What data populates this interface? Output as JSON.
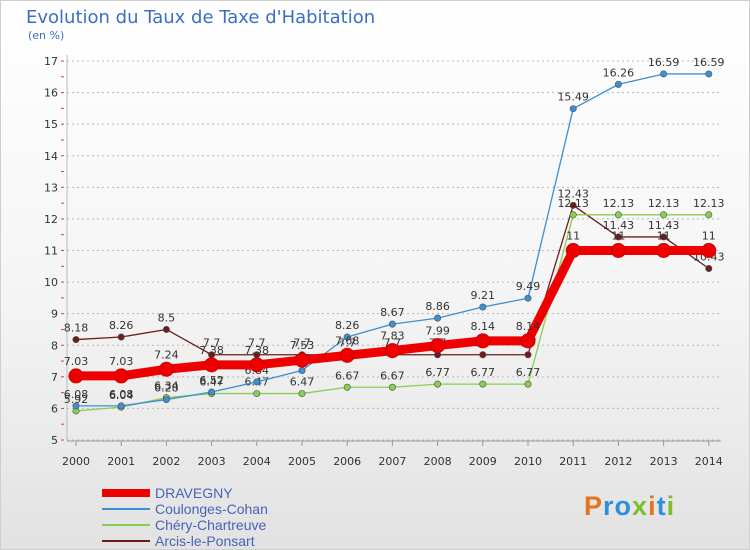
{
  "header": {
    "title": "Evolution du Taux de Taxe d'Habitation",
    "unit": "(en %)"
  },
  "logo": {
    "text": "Proxiti",
    "colors": [
      "#e8731c",
      "#2f8fd8",
      "#2f8fd8",
      "#7bbf2a",
      "#e8731c",
      "#2f8fd8",
      "#7bbf2a"
    ]
  },
  "chart_data": {
    "type": "line",
    "title": "Evolution du Taux de Taxe d'Habitation",
    "ylabel": "(en %)",
    "x": [
      2000,
      2001,
      2002,
      2003,
      2004,
      2005,
      2006,
      2007,
      2008,
      2009,
      2010,
      2011,
      2012,
      2013,
      2014
    ],
    "ylim": [
      5,
      17
    ],
    "yticks": [
      5,
      6,
      7,
      8,
      9,
      10,
      11,
      12,
      13,
      14,
      15,
      16,
      17
    ],
    "grid": true,
    "legend_position": "bottom-left",
    "series": [
      {
        "name": "DRAVEGNY",
        "color": "#ee0000",
        "values": [
          7.03,
          7.03,
          7.24,
          7.38,
          7.38,
          7.53,
          7.68,
          7.83,
          7.99,
          8.14,
          8.14,
          11,
          11,
          11,
          11
        ]
      },
      {
        "name": "Coulonges-Cohan",
        "color": "#3d8fd1",
        "values": [
          6.08,
          6.08,
          6.28,
          6.52,
          6.84,
          7.2,
          8.26,
          8.67,
          8.86,
          9.21,
          9.49,
          15.49,
          16.26,
          16.59,
          16.59
        ]
      },
      {
        "name": "Chéry-Chartreuve",
        "color": "#86cf4f",
        "values": [
          5.92,
          6.04,
          6.34,
          6.47,
          6.47,
          6.47,
          6.67,
          6.67,
          6.77,
          6.77,
          6.77,
          12.13,
          12.13,
          12.13,
          12.13
        ]
      },
      {
        "name": "Arcis-le-Ponsart",
        "color": "#6b1d1d",
        "values": [
          8.18,
          8.26,
          8.5,
          7.7,
          7.7,
          7.7,
          7.7,
          7.7,
          7.7,
          7.7,
          7.7,
          12.43,
          11.43,
          11.43,
          10.43
        ]
      }
    ]
  }
}
